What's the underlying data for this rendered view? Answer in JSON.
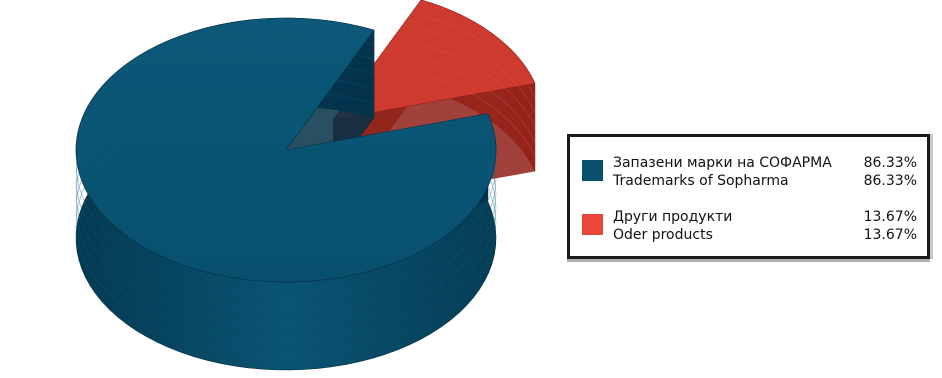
{
  "chart_data": {
    "type": "pie",
    "style": "3d-exploded",
    "series": [
      {
        "values": [
          86.33,
          13.67
        ],
        "colors": [
          "#08506e",
          "#cf3a2e"
        ]
      }
    ],
    "categories": [
      "Запазени марки на СОФАРМА",
      "Други продукти"
    ],
    "legend": {
      "placement": "right",
      "entries": [
        {
          "label": "Запазени марки на СОФАРМА",
          "label_en": "Trademarks of Sopharma",
          "value_text": "86.33%",
          "value_text_en": "86.33%",
          "color": "#08506e"
        },
        {
          "label": "Други продукти",
          "label_en": "Oder products",
          "value_text": "13.67%",
          "value_text_en": "13.67%",
          "color": "#e8473a"
        }
      ]
    }
  }
}
